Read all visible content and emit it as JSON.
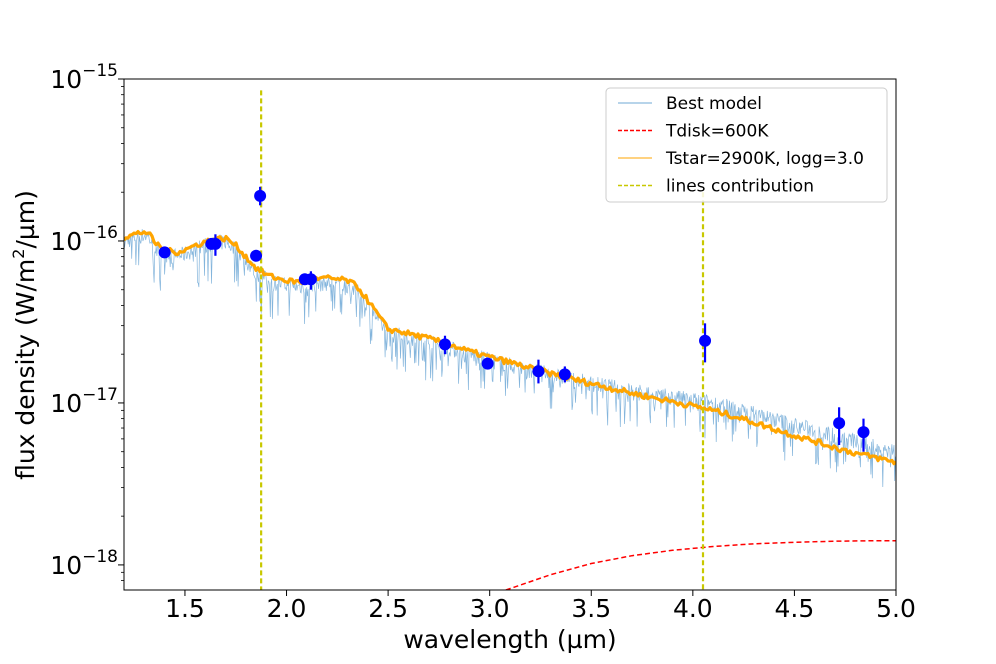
{
  "chart_data": {
    "type": "line",
    "title": "",
    "xlabel": "wavelength (µm)",
    "ylabel": "flux density (W/m²/µm)",
    "ylabel_parts": {
      "base": "flux density (W/m",
      "sup": "2",
      "tail": "/µm)"
    },
    "xlim": [
      1.2,
      5.0
    ],
    "ylim": [
      7e-19,
      1e-15
    ],
    "yscale": "log",
    "x_ticks": [
      "1.5",
      "2.0",
      "2.5",
      "3.0",
      "3.5",
      "4.0",
      "4.5",
      "5.0"
    ],
    "y_ticks": [
      {
        "value": 1e-18,
        "base": "10",
        "exp": "−18"
      },
      {
        "value": 1e-17,
        "base": "10",
        "exp": "−17"
      },
      {
        "value": 1e-16,
        "base": "10",
        "exp": "−16"
      },
      {
        "value": 1e-15,
        "base": "10",
        "exp": "−15"
      }
    ],
    "legend_position": "top-right",
    "colors": {
      "best_model": "#6fa8d6",
      "tdisk": "#ff0000",
      "tstar": "#ffa500",
      "lines": "#c8c800",
      "points": "#0000ff"
    },
    "series": [
      {
        "name": "Best model",
        "style": "noisy-line",
        "x": [
          1.2,
          1.25,
          1.3,
          1.32,
          1.35,
          1.4,
          1.45,
          1.5,
          1.55,
          1.6,
          1.65,
          1.7,
          1.75,
          1.8,
          1.85,
          1.9,
          1.95,
          2.0,
          2.05,
          2.1,
          2.15,
          2.2,
          2.25,
          2.3,
          2.35,
          2.4,
          2.45,
          2.5,
          2.55,
          2.6,
          2.7,
          2.8,
          2.9,
          3.0,
          3.1,
          3.2,
          3.3,
          3.4,
          3.5,
          3.6,
          3.7,
          3.8,
          3.9,
          4.0,
          4.1,
          4.2,
          4.3,
          4.4,
          4.5,
          4.6,
          4.7,
          4.8,
          4.9,
          5.0
        ],
        "y": [
          1.02e-16,
          1.08e-16,
          1.12e-16,
          1.1e-16,
          9.5e-17,
          8.6e-17,
          8.3e-17,
          8.6e-17,
          9.2e-17,
          9.7e-17,
          1e-16,
          1.02e-16,
          9.2e-17,
          7.8e-17,
          6.6e-17,
          6e-17,
          5.7e-17,
          5.5e-17,
          5.4e-17,
          5.4e-17,
          5.6e-17,
          5.7e-17,
          5.6e-17,
          5.5e-17,
          5e-17,
          4.2e-17,
          3.4e-17,
          2.75e-17,
          2.72e-17,
          2.62e-17,
          2.45e-17,
          2.25e-17,
          2.05e-17,
          1.9e-17,
          1.77e-17,
          1.65e-17,
          1.55e-17,
          1.45e-17,
          1.37e-17,
          1.3e-17,
          1.23e-17,
          1.17e-17,
          1.12e-17,
          1.08e-17,
          1.03e-17,
          9.6e-18,
          8.9e-18,
          8.2e-18,
          7.6e-18,
          7e-18,
          6.5e-18,
          6e-18,
          5.6e-18,
          5.3e-18
        ]
      },
      {
        "name": "Tdisk=600K",
        "style": "dashed",
        "x": [
          3.08,
          3.3,
          3.5,
          3.7,
          3.9,
          4.1,
          4.3,
          4.5,
          4.7,
          4.9,
          5.0
        ],
        "y": [
          7e-19,
          8.7e-19,
          1.02e-18,
          1.14e-18,
          1.23e-18,
          1.3e-18,
          1.35e-18,
          1.38e-18,
          1.4e-18,
          1.41e-18,
          1.41e-18
        ]
      },
      {
        "name": "Tstar=2900K, logg=3.0",
        "style": "thick-line",
        "x": [
          1.2,
          1.25,
          1.3,
          1.32,
          1.35,
          1.4,
          1.45,
          1.5,
          1.55,
          1.6,
          1.65,
          1.7,
          1.75,
          1.8,
          1.85,
          1.9,
          1.95,
          2.0,
          2.05,
          2.1,
          2.15,
          2.2,
          2.25,
          2.3,
          2.35,
          2.4,
          2.45,
          2.5,
          2.55,
          2.6,
          2.7,
          2.8,
          2.9,
          3.0,
          3.1,
          3.2,
          3.3,
          3.4,
          3.5,
          3.6,
          3.7,
          3.8,
          3.9,
          4.0,
          4.1,
          4.2,
          4.3,
          4.4,
          4.5,
          4.6,
          4.7,
          4.8,
          4.9,
          5.0
        ],
        "y": [
          1.05e-16,
          1.1e-16,
          1.14e-16,
          1.12e-16,
          9.8e-17,
          8.8e-17,
          8.5e-17,
          8.8e-17,
          9.4e-17,
          9.9e-17,
          1.02e-16,
          1.04e-16,
          9.4e-17,
          8e-17,
          6.8e-17,
          6.2e-17,
          5.9e-17,
          5.7e-17,
          5.6e-17,
          5.6e-17,
          5.8e-17,
          5.9e-17,
          5.8e-17,
          5.7e-17,
          5.2e-17,
          4.3e-17,
          3.5e-17,
          2.85e-17,
          2.78e-17,
          2.68e-17,
          2.5e-17,
          2.3e-17,
          2.08e-17,
          1.92e-17,
          1.78e-17,
          1.64e-17,
          1.52e-17,
          1.41e-17,
          1.32e-17,
          1.23e-17,
          1.15e-17,
          1.08e-17,
          1.02e-17,
          9.6e-18,
          9e-18,
          8.3e-18,
          7.6e-18,
          6.9e-18,
          6.3e-18,
          5.8e-18,
          5.3e-18,
          4.9e-18,
          4.6e-18,
          4.3e-18
        ]
      },
      {
        "name": "lines contribution",
        "style": "vertical-lines",
        "x": [
          1.875,
          4.05
        ],
        "y_top": [
          8.5e-16,
          2e-16
        ],
        "y_bottom": [
          7e-19,
          7e-19
        ]
      }
    ],
    "points": {
      "x": [
        1.4,
        1.63,
        1.65,
        1.85,
        1.87,
        2.09,
        2.12,
        2.78,
        2.99,
        3.24,
        3.37,
        4.06,
        4.72,
        4.84
      ],
      "y": [
        8.5e-17,
        9.6e-17,
        9.6e-17,
        8.1e-17,
        1.9e-16,
        5.8e-17,
        5.8e-17,
        2.3e-17,
        1.75e-17,
        1.57e-17,
        1.5e-17,
        2.42e-17,
        7.5e-18,
        6.6e-18
      ],
      "y_lo": [
        8.5e-17,
        9.6e-17,
        8.1e-17,
        8.1e-17,
        1.66e-16,
        5.8e-17,
        5e-17,
        2e-17,
        1.62e-17,
        1.32e-17,
        1.34e-17,
        1.78e-17,
        5.5e-18,
        5e-18
      ],
      "y_hi": [
        8.5e-17,
        9.6e-17,
        1.1e-16,
        8.1e-17,
        2.16e-16,
        5.8e-17,
        6.5e-17,
        2.6e-17,
        1.9e-17,
        1.85e-17,
        1.68e-17,
        3.1e-17,
        9.4e-18,
        8e-18
      ]
    },
    "legend": [
      {
        "label": "Best model",
        "style": "solid-thin",
        "color_key": "best_model"
      },
      {
        "label": "Tdisk=600K",
        "style": "dashed",
        "color_key": "tdisk"
      },
      {
        "label": "Tstar=2900K, logg=3.0",
        "style": "solid-thin",
        "color_key": "tstar"
      },
      {
        "label": "lines contribution",
        "style": "dashed",
        "color_key": "lines"
      }
    ]
  }
}
